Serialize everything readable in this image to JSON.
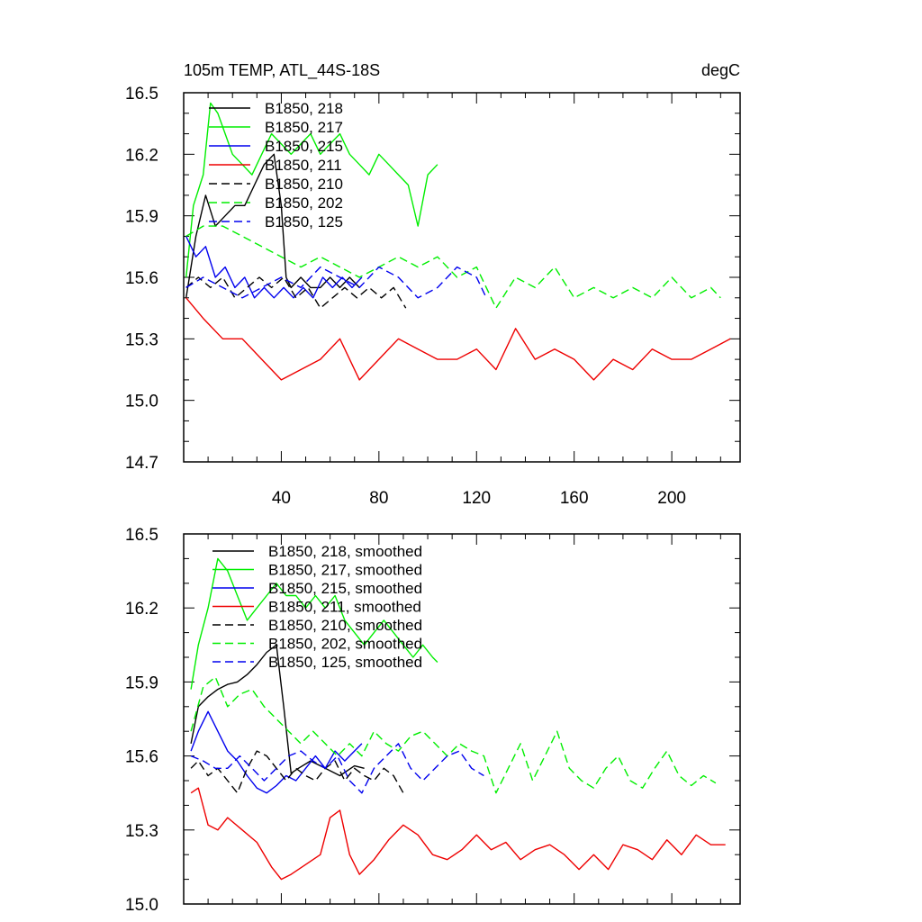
{
  "figure": {
    "title_left": "105m TEMP, ATL_44S-18S",
    "title_right": "degC"
  },
  "chart_data": [
    {
      "type": "line",
      "panel": "top",
      "title": "105m TEMP, ATL_44S-18S",
      "units": "degC",
      "xlim": [
        0,
        228
      ],
      "ylim": [
        14.7,
        16.5
      ],
      "xticks": [
        40,
        80,
        120,
        160,
        200
      ],
      "yticks": [
        14.7,
        15.0,
        15.3,
        15.6,
        15.9,
        16.2,
        16.5
      ],
      "ytick_labels": [
        "14.7",
        "15.0",
        "15.3",
        "15.6",
        "15.9",
        "16.2",
        "16.5"
      ],
      "xtick_labels": [
        "40",
        "80",
        "120",
        "160",
        "200"
      ],
      "legend": [
        "B1850, 218",
        "B1850, 217",
        "B1850, 215",
        "B1850, 211",
        "B1850, 210",
        "B1850, 202",
        "B1850, 125"
      ],
      "series": [
        {
          "name": "B1850, 218",
          "color": "#000000",
          "dash": "solid",
          "x": [
            1,
            5,
            9,
            13,
            17,
            21,
            25,
            29,
            33,
            37,
            40,
            42,
            44,
            48,
            52,
            56,
            60,
            64,
            68,
            72
          ],
          "values": [
            15.5,
            15.8,
            16.0,
            15.85,
            15.9,
            15.95,
            15.95,
            16.05,
            16.15,
            16.2,
            15.95,
            15.6,
            15.55,
            15.6,
            15.55,
            15.55,
            15.6,
            15.55,
            15.6,
            15.55
          ]
        },
        {
          "name": "B1850, 217",
          "color": "#00ee00",
          "dash": "solid",
          "x": [
            1,
            4,
            8,
            11,
            14,
            17,
            20,
            24,
            28,
            32,
            36,
            40,
            44,
            48,
            52,
            56,
            60,
            64,
            68,
            72,
            76,
            80,
            84,
            88,
            92,
            96,
            100,
            104
          ],
          "values": [
            15.6,
            15.95,
            16.1,
            16.45,
            16.4,
            16.3,
            16.2,
            16.15,
            16.1,
            16.2,
            16.3,
            16.25,
            16.2,
            16.25,
            16.3,
            16.2,
            16.25,
            16.3,
            16.2,
            16.15,
            16.1,
            16.2,
            16.15,
            16.1,
            16.05,
            15.85,
            16.1,
            16.15
          ]
        },
        {
          "name": "B1850, 215",
          "color": "#0000ee",
          "dash": "solid",
          "x": [
            1,
            5,
            9,
            13,
            17,
            21,
            25,
            29,
            33,
            37,
            41,
            45,
            49,
            53,
            57,
            61,
            65,
            69,
            73
          ],
          "values": [
            15.8,
            15.7,
            15.75,
            15.6,
            15.65,
            15.55,
            15.6,
            15.5,
            15.55,
            15.5,
            15.55,
            15.5,
            15.55,
            15.5,
            15.6,
            15.55,
            15.6,
            15.55,
            15.6
          ]
        },
        {
          "name": "B1850, 211",
          "color": "#ee0000",
          "dash": "solid",
          "x": [
            1,
            8,
            16,
            24,
            32,
            40,
            48,
            56,
            64,
            72,
            80,
            88,
            96,
            104,
            112,
            120,
            128,
            136,
            144,
            152,
            160,
            168,
            176,
            184,
            192,
            200,
            208,
            216,
            224
          ],
          "values": [
            15.5,
            15.4,
            15.3,
            15.3,
            15.2,
            15.1,
            15.15,
            15.2,
            15.3,
            15.1,
            15.2,
            15.3,
            15.25,
            15.2,
            15.2,
            15.25,
            15.15,
            15.35,
            15.2,
            15.25,
            15.2,
            15.1,
            15.2,
            15.15,
            15.25,
            15.2,
            15.2,
            15.25,
            15.3
          ]
        },
        {
          "name": "B1850, 210",
          "color": "#000000",
          "dash": "dash",
          "x": [
            1,
            6,
            11,
            16,
            21,
            26,
            31,
            36,
            41,
            46,
            51,
            56,
            61,
            66,
            71,
            76,
            81,
            86,
            91
          ],
          "values": [
            15.55,
            15.6,
            15.55,
            15.6,
            15.5,
            15.55,
            15.6,
            15.55,
            15.6,
            15.5,
            15.55,
            15.45,
            15.5,
            15.55,
            15.5,
            15.55,
            15.5,
            15.55,
            15.45
          ]
        },
        {
          "name": "B1850, 202",
          "color": "#00ee00",
          "dash": "dash",
          "x": [
            1,
            8,
            16,
            24,
            32,
            40,
            48,
            56,
            64,
            72,
            80,
            88,
            96,
            104,
            112,
            120,
            128,
            136,
            144,
            152,
            160,
            168,
            176,
            184,
            192,
            200,
            208,
            216,
            220
          ],
          "values": [
            15.8,
            15.85,
            15.85,
            15.8,
            15.75,
            15.7,
            15.65,
            15.7,
            15.65,
            15.6,
            15.65,
            15.7,
            15.65,
            15.7,
            15.6,
            15.65,
            15.45,
            15.6,
            15.55,
            15.65,
            15.5,
            15.55,
            15.5,
            15.55,
            15.5,
            15.6,
            15.5,
            15.55,
            15.5
          ]
        },
        {
          "name": "B1850, 125",
          "color": "#0000ee",
          "dash": "dash",
          "x": [
            1,
            8,
            16,
            24,
            32,
            40,
            48,
            56,
            64,
            72,
            80,
            88,
            96,
            104,
            112,
            120,
            124
          ],
          "values": [
            15.55,
            15.6,
            15.55,
            15.5,
            15.55,
            15.6,
            15.55,
            15.65,
            15.6,
            15.55,
            15.65,
            15.6,
            15.5,
            15.55,
            15.65,
            15.6,
            15.5
          ]
        }
      ]
    },
    {
      "type": "line",
      "panel": "bottom",
      "xlim": [
        0,
        228
      ],
      "ylim": [
        15.0,
        16.5
      ],
      "yticks": [
        15.0,
        15.3,
        15.6,
        15.9,
        16.2,
        16.5
      ],
      "ytick_labels": [
        "15.0",
        "15.3",
        "15.6",
        "15.9",
        "16.2",
        "16.5"
      ],
      "xticks": [
        40,
        80,
        120,
        160,
        200
      ],
      "legend": [
        "B1850, 218, smoothed",
        "B1850, 217, smoothed",
        "B1850, 215, smoothed",
        "B1850, 211, smoothed",
        "B1850, 210, smoothed",
        "B1850, 202, smoothed",
        "B1850, 125, smoothed"
      ],
      "series": [
        {
          "name": "B1850, 218, smoothed",
          "color": "#000000",
          "dash": "solid",
          "x": [
            3,
            6,
            10,
            14,
            18,
            22,
            26,
            30,
            34,
            38,
            41,
            44,
            47,
            52,
            58,
            64,
            70,
            74
          ],
          "values": [
            15.65,
            15.8,
            15.84,
            15.87,
            15.89,
            15.9,
            15.93,
            15.97,
            16.02,
            16.05,
            15.8,
            15.53,
            15.55,
            15.58,
            15.55,
            15.52,
            15.56,
            15.55
          ]
        },
        {
          "name": "B1850, 217, smoothed",
          "color": "#00ee00",
          "dash": "solid",
          "x": [
            3,
            6,
            10,
            14,
            18,
            22,
            26,
            30,
            34,
            38,
            42,
            46,
            50,
            54,
            58,
            62,
            66,
            70,
            74,
            78,
            82,
            86,
            90,
            94,
            98,
            102,
            104
          ],
          "values": [
            15.87,
            16.05,
            16.2,
            16.4,
            16.35,
            16.25,
            16.15,
            16.2,
            16.25,
            16.3,
            16.25,
            16.25,
            16.2,
            16.25,
            16.2,
            16.25,
            16.15,
            16.1,
            16.05,
            16.1,
            16.15,
            16.1,
            16.05,
            16.0,
            16.05,
            16.0,
            15.98
          ]
        },
        {
          "name": "B1850, 215, smoothed",
          "color": "#0000ee",
          "dash": "solid",
          "x": [
            3,
            6,
            10,
            14,
            18,
            22,
            26,
            30,
            34,
            38,
            42,
            46,
            50,
            54,
            58,
            62,
            66,
            70,
            73
          ],
          "values": [
            15.62,
            15.7,
            15.78,
            15.7,
            15.62,
            15.58,
            15.52,
            15.47,
            15.45,
            15.48,
            15.52,
            15.5,
            15.55,
            15.6,
            15.55,
            15.62,
            15.58,
            15.62,
            15.65
          ]
        },
        {
          "name": "B1850, 211, smoothed",
          "color": "#ee0000",
          "dash": "solid",
          "x": [
            3,
            6,
            10,
            14,
            18,
            24,
            30,
            36,
            40,
            44,
            50,
            56,
            60,
            64,
            68,
            72,
            78,
            84,
            90,
            96,
            102,
            108,
            114,
            120,
            126,
            132,
            138,
            144,
            150,
            156,
            162,
            168,
            174,
            180,
            186,
            192,
            198,
            204,
            210,
            216,
            222
          ],
          "values": [
            15.45,
            15.47,
            15.32,
            15.3,
            15.35,
            15.3,
            15.25,
            15.15,
            15.1,
            15.12,
            15.16,
            15.2,
            15.35,
            15.38,
            15.2,
            15.12,
            15.18,
            15.26,
            15.32,
            15.28,
            15.2,
            15.18,
            15.22,
            15.28,
            15.22,
            15.25,
            15.18,
            15.22,
            15.24,
            15.2,
            15.14,
            15.2,
            15.14,
            15.24,
            15.22,
            15.18,
            15.26,
            15.2,
            15.28,
            15.24,
            15.24
          ]
        },
        {
          "name": "B1850, 210, smoothed",
          "color": "#000000",
          "dash": "dash",
          "x": [
            3,
            6,
            10,
            14,
            18,
            22,
            26,
            30,
            34,
            38,
            42,
            46,
            50,
            54,
            58,
            62,
            66,
            70,
            74,
            78,
            82,
            86,
            90
          ],
          "values": [
            15.55,
            15.58,
            15.52,
            15.55,
            15.5,
            15.45,
            15.55,
            15.62,
            15.6,
            15.55,
            15.5,
            15.55,
            15.52,
            15.5,
            15.55,
            15.58,
            15.5,
            15.55,
            15.52,
            15.5,
            15.55,
            15.52,
            15.45
          ]
        },
        {
          "name": "B1850, 202, smoothed",
          "color": "#00ee00",
          "dash": "dash",
          "x": [
            3,
            8,
            13,
            18,
            23,
            28,
            33,
            38,
            43,
            48,
            53,
            58,
            63,
            68,
            73,
            78,
            83,
            88,
            93,
            98,
            103,
            108,
            113,
            118,
            123,
            128,
            133,
            138,
            143,
            148,
            153,
            158,
            163,
            168,
            173,
            178,
            183,
            188,
            193,
            198,
            203,
            208,
            213,
            218
          ],
          "values": [
            15.7,
            15.88,
            15.92,
            15.8,
            15.85,
            15.87,
            15.8,
            15.75,
            15.7,
            15.65,
            15.7,
            15.65,
            15.6,
            15.65,
            15.6,
            15.7,
            15.65,
            15.62,
            15.68,
            15.7,
            15.65,
            15.6,
            15.65,
            15.62,
            15.6,
            15.45,
            15.55,
            15.65,
            15.5,
            15.6,
            15.7,
            15.55,
            15.5,
            15.47,
            15.55,
            15.6,
            15.5,
            15.47,
            15.55,
            15.62,
            15.52,
            15.48,
            15.52,
            15.49
          ]
        },
        {
          "name": "B1850, 125, smoothed",
          "color": "#0000ee",
          "dash": "dash",
          "x": [
            3,
            8,
            13,
            18,
            23,
            28,
            33,
            38,
            43,
            48,
            53,
            58,
            63,
            68,
            73,
            78,
            83,
            88,
            93,
            98,
            103,
            108,
            113,
            118,
            123
          ],
          "values": [
            15.6,
            15.58,
            15.55,
            15.55,
            15.6,
            15.55,
            15.5,
            15.55,
            15.6,
            15.62,
            15.58,
            15.55,
            15.6,
            15.5,
            15.45,
            15.55,
            15.6,
            15.65,
            15.55,
            15.5,
            15.55,
            15.6,
            15.62,
            15.55,
            15.52
          ]
        }
      ]
    }
  ]
}
